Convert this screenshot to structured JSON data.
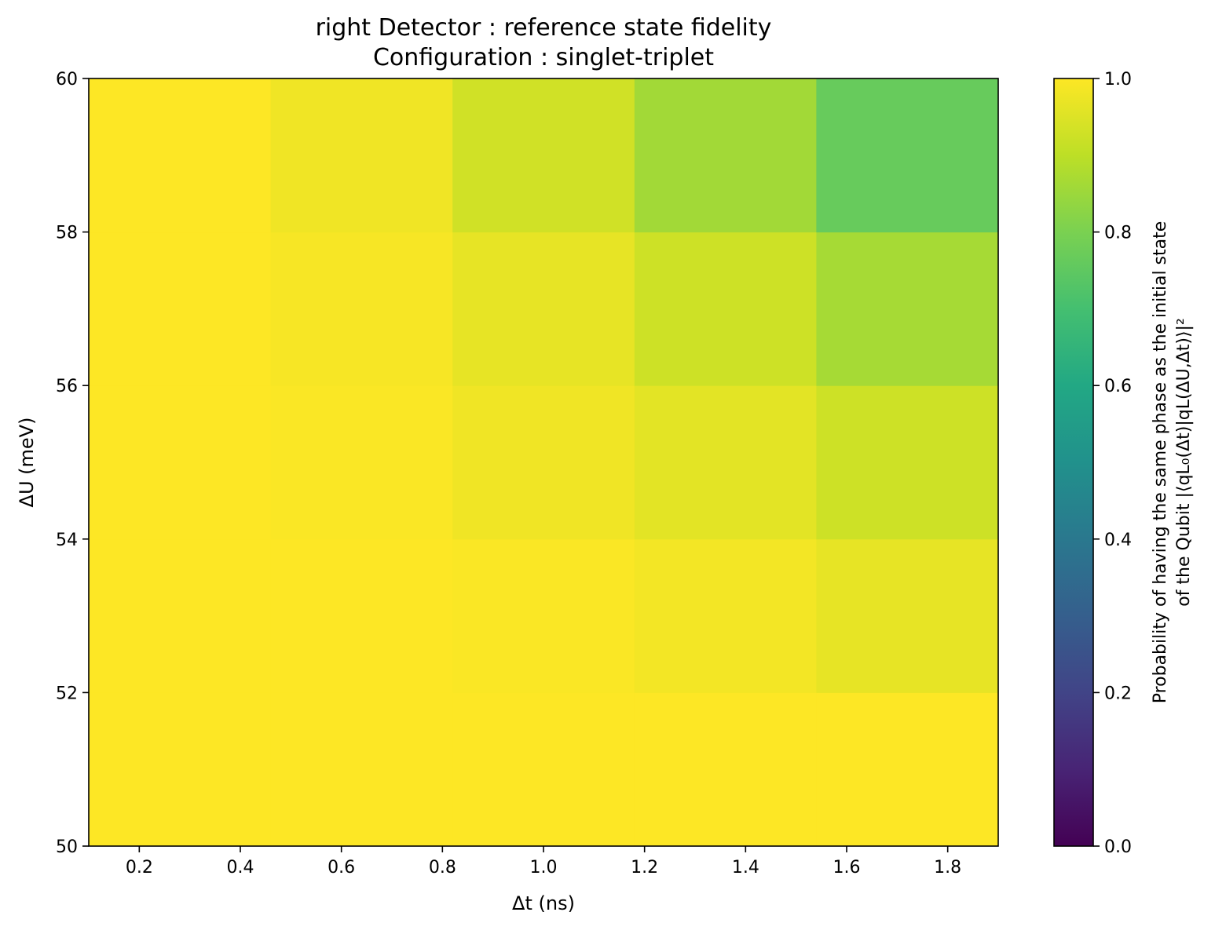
{
  "chart_data": {
    "type": "heatmap",
    "title": "right Detector : reference state fidelity",
    "subtitle": "Configuration : singlet-triplet",
    "xlabel": "Δt (ns)",
    "ylabel": "ΔU (meV)",
    "xlim": [
      0.1,
      1.9
    ],
    "ylim": [
      50,
      60
    ],
    "x_ticks": [
      "0.2",
      "0.4",
      "0.6",
      "0.8",
      "1.0",
      "1.2",
      "1.4",
      "1.6",
      "1.8"
    ],
    "y_ticks": [
      "50",
      "52",
      "54",
      "56",
      "58",
      "60"
    ],
    "x_centers": [
      0.28,
      0.64,
      1.0,
      1.36,
      1.72
    ],
    "y_centers": [
      51,
      53,
      55,
      57,
      59
    ],
    "values": [
      [
        1.0,
        1.0,
        1.0,
        1.0,
        1.0
      ],
      [
        1.0,
        1.0,
        0.995,
        0.985,
        0.965
      ],
      [
        1.0,
        0.995,
        0.98,
        0.96,
        0.925
      ],
      [
        1.0,
        0.99,
        0.965,
        0.925,
        0.865
      ],
      [
        1.0,
        0.98,
        0.93,
        0.86,
        0.765
      ]
    ],
    "colormap": "viridis",
    "colorbar": {
      "range": [
        0.0,
        1.0
      ],
      "ticks": [
        "0.0",
        "0.2",
        "0.4",
        "0.6",
        "0.8",
        "1.0"
      ],
      "label_line1": "Probability of having the same phase as the initial state",
      "label_line2": "of the Qubit |⟨qL₀(Δt)|qL(ΔU,Δt)⟩|²"
    }
  }
}
